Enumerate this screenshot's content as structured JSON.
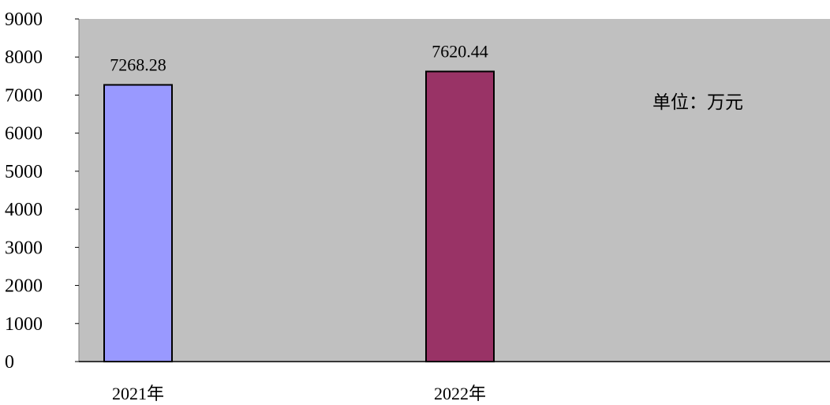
{
  "chart_data": {
    "type": "bar",
    "categories": [
      "2021年",
      "2022年"
    ],
    "values": [
      7268.28,
      7620.44
    ],
    "data_labels": [
      "7268.28",
      "7620.44"
    ],
    "ylim": [
      0,
      9000
    ],
    "yticks": [
      0,
      1000,
      2000,
      3000,
      4000,
      5000,
      6000,
      7000,
      8000,
      9000
    ],
    "unit_note": "单位：万元",
    "grid": false,
    "legend": "none",
    "colors": {
      "plot_background": "#c0c0c0",
      "bars": [
        "#9999ff",
        "#993366"
      ],
      "bar_border": "#000000"
    }
  }
}
